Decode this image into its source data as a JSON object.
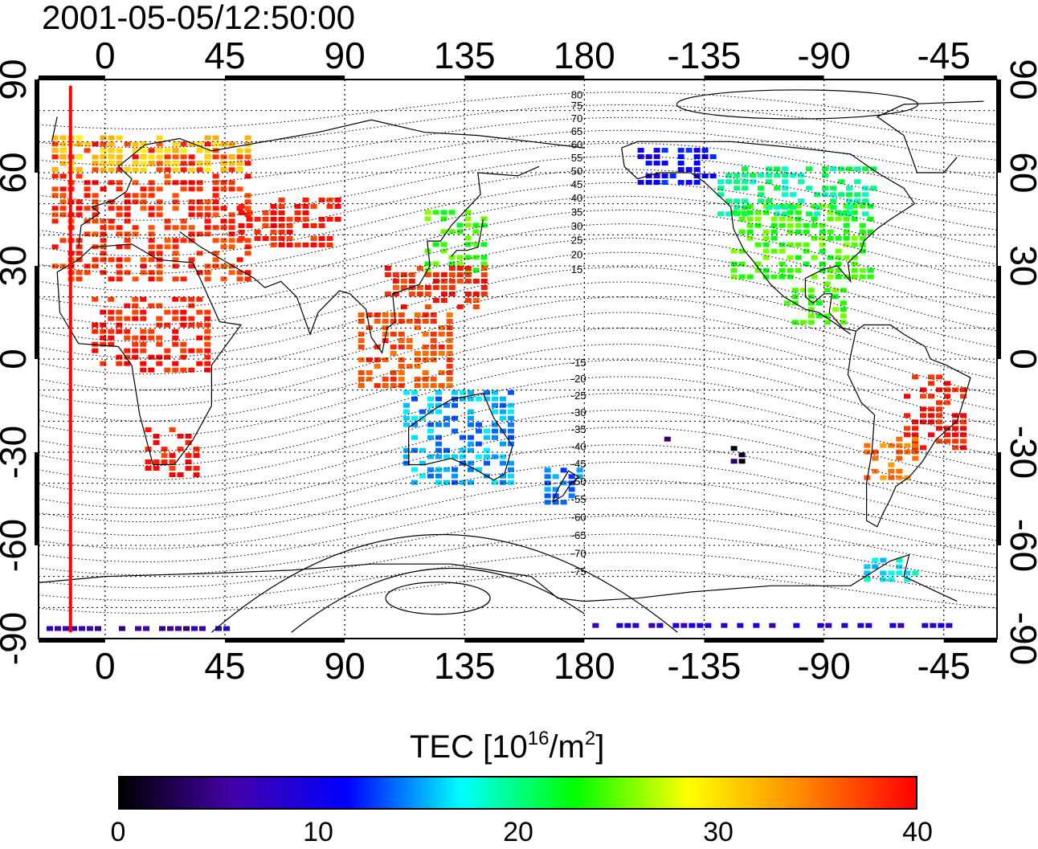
{
  "title": "2001-05-05/12:50:00",
  "lon_ticks": [
    "0",
    "45",
    "90",
    "135",
    "180",
    "-135",
    "-90",
    "-45"
  ],
  "lat_ticks": [
    "90",
    "60",
    "30",
    "0",
    "-30",
    "-60",
    "-90"
  ],
  "contour_labels": [
    "80",
    "75",
    "70",
    "65",
    "60",
    "55",
    "50",
    "45",
    "40",
    "35",
    "30",
    "25",
    "20",
    "15",
    "-15",
    "-20",
    "-25",
    "-30",
    "-35",
    "-40",
    "-45",
    "-50",
    "-55",
    "-60",
    "-65",
    "-70",
    "-75"
  ],
  "colorbar": {
    "title_main": "TEC  [10",
    "title_exp": "16",
    "title_mid": "/m",
    "title_exp2": "2",
    "title_end": "]",
    "ticks": [
      "0",
      "10",
      "20",
      "30",
      "40"
    ],
    "range": [
      0,
      40
    ],
    "colors": [
      "#000000",
      "#4400aa",
      "#0000ff",
      "#00ffff",
      "#00ff00",
      "#ffff00",
      "#ff8800",
      "#ff0000"
    ]
  },
  "chart_data": {
    "type": "heatmap",
    "title": "2001-05-05/12:50:00",
    "xlim": [
      -25,
      335
    ],
    "ylim": [
      -90,
      90
    ],
    "x_ticks": [
      0,
      45,
      90,
      135,
      180,
      -135,
      -90,
      -45
    ],
    "y_ticks": [
      90,
      60,
      30,
      0,
      -30,
      -60,
      -90
    ],
    "grid": true,
    "colorbar_label": "TEC [10^16/m^2]",
    "value_range": [
      0,
      40
    ],
    "sunrise_line_lon": -13,
    "regions": [
      {
        "lon": [
          -20,
          55
        ],
        "lat": [
          25,
          70
        ],
        "tec": 38
      },
      {
        "lon": [
          50,
          90
        ],
        "lat": [
          35,
          52
        ],
        "tec": 39
      },
      {
        "lon": [
          15,
          35
        ],
        "lat": [
          -38,
          -22
        ],
        "tec": 39
      },
      {
        "lon": [
          -5,
          40
        ],
        "lat": [
          -5,
          20
        ],
        "tec": 39
      },
      {
        "lon": [
          -20,
          55
        ],
        "lat": [
          60,
          72
        ],
        "tec": 31
      },
      {
        "lon": [
          120,
          145
        ],
        "lat": [
          28,
          48
        ],
        "tec": 24
      },
      {
        "lon": [
          105,
          145
        ],
        "lat": [
          15,
          30
        ],
        "tec": 38
      },
      {
        "lon": [
          95,
          130
        ],
        "lat": [
          -10,
          15
        ],
        "tec": 37
      },
      {
        "lon": [
          112,
          155
        ],
        "lat": [
          -40,
          -10
        ],
        "tec": 15
      },
      {
        "lon": [
          165,
          180
        ],
        "lat": [
          -48,
          -35
        ],
        "tec": 14
      },
      {
        "lon": [
          -125,
          -70
        ],
        "lat": [
          25,
          50
        ],
        "tec": 24
      },
      {
        "lon": [
          -160,
          -130
        ],
        "lat": [
          55,
          68
        ],
        "tec": 11
      },
      {
        "lon": [
          -130,
          -70
        ],
        "lat": [
          45,
          62
        ],
        "tec": 20
      },
      {
        "lon": [
          -105,
          -80
        ],
        "lat": [
          10,
          25
        ],
        "tec": 24
      },
      {
        "lon": [
          -60,
          -35
        ],
        "lat": [
          -30,
          -5
        ],
        "tec": 39
      },
      {
        "lon": [
          -75,
          -55
        ],
        "lat": [
          -40,
          -25
        ],
        "tec": 35
      },
      {
        "lon": [
          -75,
          -55
        ],
        "lat": [
          -72,
          -64
        ],
        "tec": 17
      },
      {
        "lon": [
          -125,
          -120
        ],
        "lat": [
          -35,
          -28
        ],
        "tec": 2
      },
      {
        "lon": [
          -150,
          -145
        ],
        "lat": [
          -28,
          -25
        ],
        "tec": 3
      },
      {
        "lon": [
          180,
          320
        ],
        "lat": [
          -87,
          -85
        ],
        "tec": 8
      },
      {
        "lon": [
          -25,
          50
        ],
        "lat": [
          -88,
          -86
        ],
        "tec": 6
      }
    ]
  }
}
